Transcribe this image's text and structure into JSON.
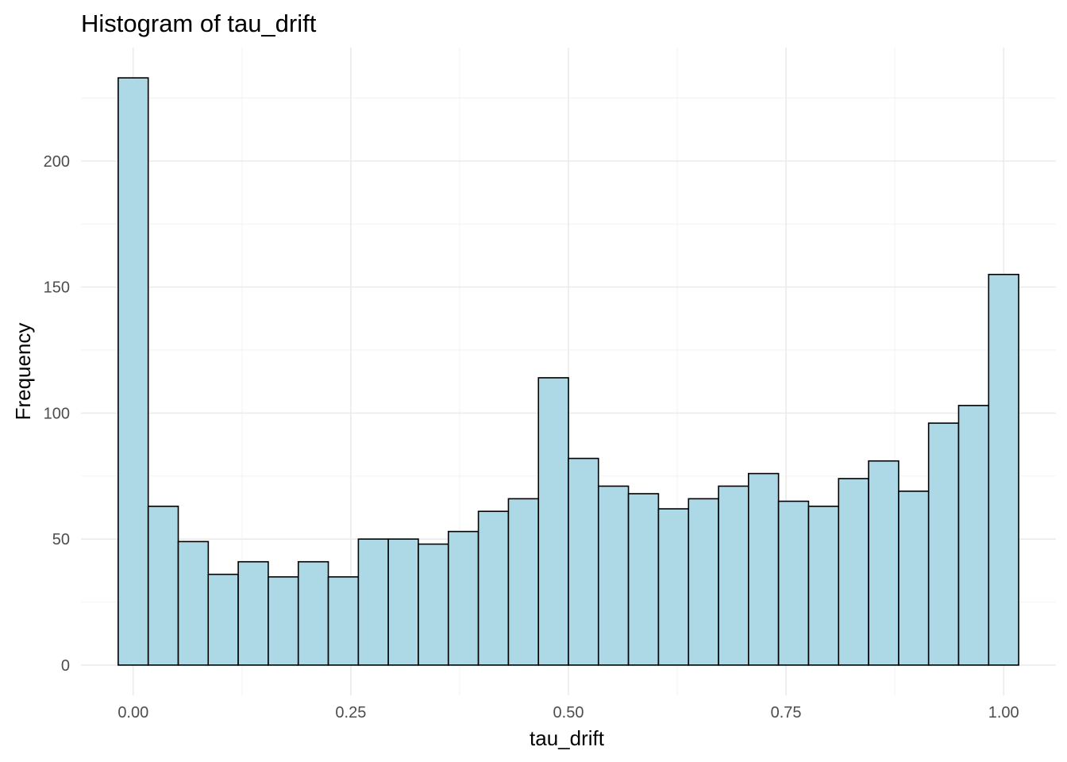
{
  "chart_data": {
    "type": "bar",
    "title": "Histogram of tau_drift",
    "xlabel": "tau_drift",
    "ylabel": "Frequency",
    "bin_width": 0.03448,
    "bin_centers": [
      0.0,
      0.0345,
      0.069,
      0.1034,
      0.1379,
      0.1724,
      0.2069,
      0.2414,
      0.2759,
      0.3103,
      0.3448,
      0.3793,
      0.4138,
      0.4483,
      0.4828,
      0.5172,
      0.5517,
      0.5862,
      0.6207,
      0.6552,
      0.6897,
      0.7241,
      0.7586,
      0.7931,
      0.8276,
      0.8621,
      0.8966,
      0.931,
      0.9655,
      1.0
    ],
    "values": [
      233,
      63,
      49,
      36,
      41,
      35,
      41,
      35,
      50,
      50,
      48,
      53,
      61,
      66,
      114,
      82,
      71,
      68,
      62,
      66,
      71,
      76,
      65,
      63,
      74,
      81,
      69,
      96,
      103,
      155
    ],
    "xlim": [
      -0.06,
      1.06
    ],
    "ylim": [
      -12,
      245
    ],
    "x_ticks": [
      0.0,
      0.25,
      0.5,
      0.75,
      1.0
    ],
    "x_tick_labels": [
      "0.00",
      "0.25",
      "0.50",
      "0.75",
      "1.00"
    ],
    "y_ticks": [
      0,
      50,
      100,
      150,
      200
    ],
    "y_tick_labels": [
      "0",
      "50",
      "100",
      "150",
      "200"
    ],
    "grid": true,
    "colors": {
      "bar_fill": "#add8e6",
      "bar_outline": "#000000",
      "grid": "#ebebeb"
    }
  }
}
